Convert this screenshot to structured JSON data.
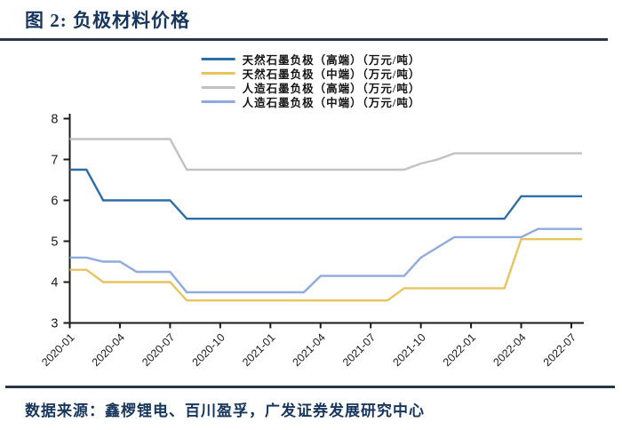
{
  "header": {
    "title": "图 2:  负极材料价格"
  },
  "legend": {
    "items": [
      {
        "label": "天然石墨负极（高端）（万元/吨）",
        "color": "#2e6ea6"
      },
      {
        "label": "天然石墨负极（中端）（万元/吨）",
        "color": "#e8c45f"
      },
      {
        "label": "人造石墨负极（高端）（万元/吨）",
        "color": "#c2c2c2"
      },
      {
        "label": "人造石墨负极（中端）（万元/吨）",
        "color": "#8faadc"
      }
    ]
  },
  "chart_data": {
    "type": "line",
    "title": "负极材料价格",
    "unit": "万元/吨",
    "grid": false,
    "legend_position": "top",
    "ylim": [
      3,
      8
    ],
    "yticks": [
      3,
      4,
      5,
      6,
      7,
      8
    ],
    "x": [
      "2020-01",
      "2020-02",
      "2020-03",
      "2020-04",
      "2020-05",
      "2020-06",
      "2020-07",
      "2020-08",
      "2020-09",
      "2020-10",
      "2020-11",
      "2020-12",
      "2021-01",
      "2021-02",
      "2021-03",
      "2021-04",
      "2021-05",
      "2021-06",
      "2021-07",
      "2021-08",
      "2021-09",
      "2021-10",
      "2021-11",
      "2021-12",
      "2022-01",
      "2022-02",
      "2022-03",
      "2022-04",
      "2022-05",
      "2022-06",
      "2022-07"
    ],
    "xticks": [
      "2020-01",
      "2020-04",
      "2020-07",
      "2020-10",
      "2021-01",
      "2021-04",
      "2021-07",
      "2021-10",
      "2022-01",
      "2022-04",
      "2022-07"
    ],
    "series": [
      {
        "name": "天然石墨负极（高端）（万元/吨）",
        "color": "#2e6ea6",
        "values": [
          6.75,
          6.75,
          6,
          6,
          6,
          6,
          6,
          5.55,
          5.55,
          5.55,
          5.55,
          5.55,
          5.55,
          5.55,
          5.55,
          5.55,
          5.55,
          5.55,
          5.55,
          5.55,
          5.55,
          5.55,
          5.55,
          5.55,
          5.55,
          5.55,
          5.55,
          6.1,
          6.1,
          6.1,
          6.1
        ]
      },
      {
        "name": "天然石墨负极（中端）（万元/吨）",
        "color": "#e8c45f",
        "values": [
          4.3,
          4.3,
          4,
          4,
          4,
          4,
          4,
          3.55,
          3.55,
          3.55,
          3.55,
          3.55,
          3.55,
          3.55,
          3.55,
          3.55,
          3.55,
          3.55,
          3.55,
          3.55,
          3.85,
          3.85,
          3.85,
          3.85,
          3.85,
          3.85,
          3.85,
          5.05,
          5.05,
          5.05,
          5.05
        ]
      },
      {
        "name": "人造石墨负极（高端）（万元/吨）",
        "color": "#c2c2c2",
        "values": [
          7.5,
          7.5,
          7.5,
          7.5,
          7.5,
          7.5,
          7.5,
          6.75,
          6.75,
          6.75,
          6.75,
          6.75,
          6.75,
          6.75,
          6.75,
          6.75,
          6.75,
          6.75,
          6.75,
          6.75,
          6.75,
          6.9,
          7,
          7.15,
          7.15,
          7.15,
          7.15,
          7.15,
          7.15,
          7.15,
          7.15
        ]
      },
      {
        "name": "人造石墨负极（中端）（万元/吨）",
        "color": "#8faadc",
        "values": [
          4.6,
          4.6,
          4.5,
          4.5,
          4.25,
          4.25,
          4.25,
          3.75,
          3.75,
          3.75,
          3.75,
          3.75,
          3.75,
          3.75,
          3.75,
          4.15,
          4.15,
          4.15,
          4.15,
          4.15,
          4.15,
          4.6,
          4.85,
          5.1,
          5.1,
          5.1,
          5.1,
          5.1,
          5.3,
          5.3,
          5.3
        ]
      }
    ]
  },
  "footer": {
    "source": "数据来源：鑫椤锂电、百川盈孚，广发证券发展研究中心"
  }
}
